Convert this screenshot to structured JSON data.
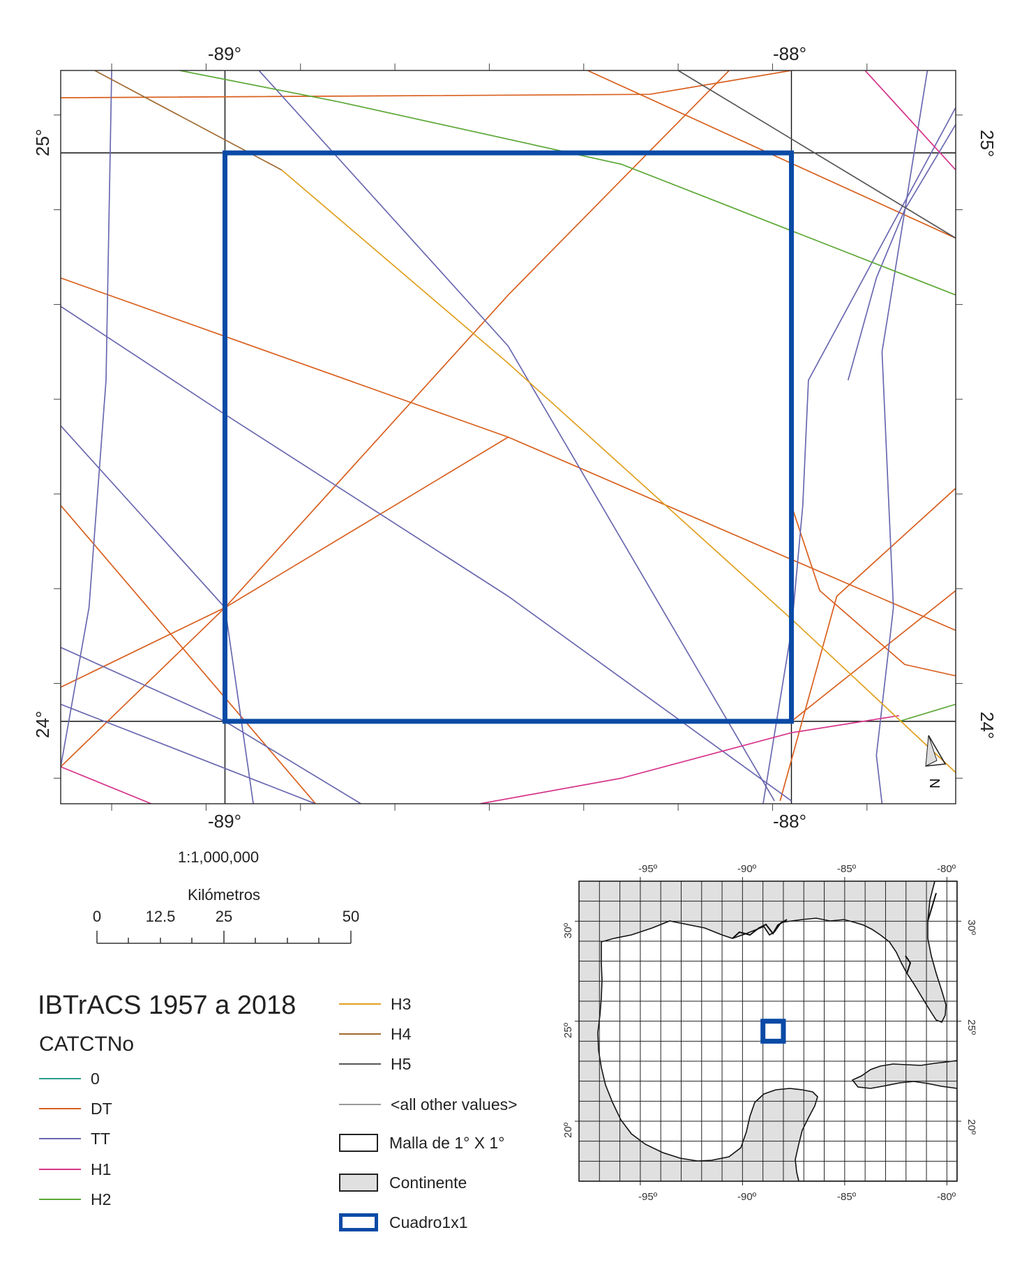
{
  "map": {
    "top_labels": [
      "-89°",
      "-88°"
    ],
    "bottom_labels": [
      "-89°",
      "-88°"
    ],
    "left_labels": [
      "25°",
      "24°"
    ],
    "right_labels": [
      "25°",
      "24°"
    ],
    "extent": {
      "lon_min": -89.29,
      "lon_max": -87.71,
      "lat_min": 23.855,
      "lat_max": 25.145
    },
    "study_square": {
      "lon": [
        -89,
        -88
      ],
      "lat": [
        24,
        25
      ]
    },
    "north_arrow_label": "N",
    "tracks": [
      {
        "category": "DT",
        "color": "#d95f1e",
        "points": [
          [
            -89.29,
            25.097
          ],
          [
            -88.25,
            25.103
          ],
          [
            -88.0,
            25.145
          ]
        ]
      },
      {
        "category": "DT",
        "color": "#d95f1e",
        "points": [
          [
            -88.36,
            25.145
          ],
          [
            -87.71,
            24.85
          ]
        ]
      },
      {
        "category": "DT",
        "color": "#d95f1e",
        "points": [
          [
            -89.29,
            24.78
          ],
          [
            -88.5,
            24.5
          ],
          [
            -87.71,
            24.16
          ]
        ]
      },
      {
        "category": "DT",
        "color": "#d95f1e",
        "points": [
          [
            -89.29,
            24.38
          ],
          [
            -88.84,
            23.855
          ]
        ]
      },
      {
        "category": "DT",
        "color": "#d95f1e",
        "points": [
          [
            -89.29,
            24.06
          ],
          [
            -89.0,
            24.2
          ],
          [
            -88.5,
            24.75
          ],
          [
            -88.11,
            25.145
          ]
        ]
      },
      {
        "category": "DT",
        "color": "#d95f1e",
        "points": [
          [
            -89.29,
            23.92
          ],
          [
            -89.0,
            24.2
          ],
          [
            -88.5,
            24.5
          ]
        ]
      },
      {
        "category": "DT",
        "color": "#d95f1e",
        "points": [
          [
            -88.02,
            23.86
          ],
          [
            -87.92,
            24.22
          ],
          [
            -87.71,
            24.41
          ]
        ]
      },
      {
        "category": "DT",
        "color": "#d95f1e",
        "points": [
          [
            -88.0,
            24.38
          ],
          [
            -87.95,
            24.23
          ],
          [
            -87.8,
            24.1
          ],
          [
            -87.71,
            24.08
          ]
        ]
      },
      {
        "category": "DT",
        "color": "#d95f1e",
        "points": [
          [
            -88.0,
            24.0
          ],
          [
            -87.71,
            24.23
          ]
        ]
      },
      {
        "category": "TT",
        "color": "#6a68b0",
        "points": [
          [
            -89.2,
            25.145
          ],
          [
            -89.21,
            24.6
          ],
          [
            -89.24,
            24.2
          ],
          [
            -89.29,
            23.92
          ]
        ]
      },
      {
        "category": "TT",
        "color": "#6a68b0",
        "points": [
          [
            -89.29,
            24.73
          ],
          [
            -89.0,
            24.54
          ],
          [
            -88.5,
            24.22
          ],
          [
            -88.0,
            23.86
          ]
        ]
      },
      {
        "category": "TT",
        "color": "#6a68b0",
        "points": [
          [
            -88.94,
            25.145
          ],
          [
            -88.5,
            24.66
          ],
          [
            -88.03,
            23.86
          ]
        ]
      },
      {
        "category": "TT",
        "color": "#6a68b0",
        "points": [
          [
            -89.29,
            24.52
          ],
          [
            -89.0,
            24.2
          ],
          [
            -88.95,
            23.855
          ]
        ]
      },
      {
        "category": "TT",
        "color": "#6a68b0",
        "points": [
          [
            -89.29,
            24.13
          ],
          [
            -89.0,
            24.0
          ],
          [
            -88.76,
            23.855
          ]
        ]
      },
      {
        "category": "TT",
        "color": "#6a68b0",
        "points": [
          [
            -89.29,
            24.03
          ],
          [
            -88.84,
            23.855
          ]
        ]
      },
      {
        "category": "TT",
        "color": "#6a68b0",
        "points": [
          [
            -87.71,
            25.08
          ],
          [
            -87.97,
            24.6
          ],
          [
            -87.98,
            24.38
          ],
          [
            -88.0,
            24.16
          ],
          [
            -88.05,
            23.855
          ]
        ]
      },
      {
        "category": "TT",
        "color": "#6a68b0",
        "points": [
          [
            -87.76,
            25.145
          ],
          [
            -87.84,
            24.65
          ],
          [
            -87.82,
            24.2
          ],
          [
            -87.85,
            23.94
          ],
          [
            -87.84,
            23.855
          ]
        ]
      },
      {
        "category": "TT",
        "color": "#6a68b0",
        "points": [
          [
            -87.71,
            25.05
          ],
          [
            -87.8,
            24.9
          ],
          [
            -87.85,
            24.78
          ],
          [
            -87.9,
            24.6
          ]
        ]
      },
      {
        "category": "H1",
        "color": "#d6338a",
        "points": [
          [
            -89.29,
            23.92
          ],
          [
            -89.13,
            23.855
          ]
        ]
      },
      {
        "category": "H1",
        "color": "#d6338a",
        "points": [
          [
            -88.55,
            23.855
          ],
          [
            -88.3,
            23.9
          ],
          [
            -88.0,
            23.98
          ],
          [
            -87.81,
            24.01
          ]
        ]
      },
      {
        "category": "H1",
        "color": "#d6338a",
        "points": [
          [
            -87.87,
            25.145
          ],
          [
            -87.71,
            24.97
          ]
        ]
      },
      {
        "category": "H2",
        "color": "#5ca836",
        "points": [
          [
            -89.08,
            25.145
          ],
          [
            -88.8,
            25.09
          ],
          [
            -88.3,
            24.98
          ],
          [
            -87.71,
            24.75
          ]
        ]
      },
      {
        "category": "H2",
        "color": "#5ca836",
        "points": [
          [
            -87.81,
            24.0
          ],
          [
            -87.71,
            24.03
          ]
        ]
      },
      {
        "category": "H3",
        "color": "#e0a020",
        "points": [
          [
            -88.9,
            24.97
          ],
          [
            -88.5,
            24.63
          ],
          [
            -88.0,
            24.18
          ],
          [
            -87.71,
            23.91
          ]
        ]
      },
      {
        "category": "H4",
        "color": "#a06a30",
        "points": [
          [
            -89.23,
            25.145
          ],
          [
            -88.9,
            24.97
          ]
        ]
      },
      {
        "category": "H5",
        "color": "#555555",
        "points": [
          [
            -88.2,
            25.145
          ],
          [
            -87.71,
            24.85
          ]
        ]
      }
    ]
  },
  "scale": {
    "ratio": "1:1,000,000",
    "unit": "Kilómetros",
    "ticks": [
      "0",
      "12.5",
      "25",
      "50"
    ]
  },
  "legend": {
    "title": "IBTrACS 1957 a 2018",
    "field": "CATCTNo",
    "items": [
      {
        "label": "0",
        "color": "#2a9d8f"
      },
      {
        "label": "DT",
        "color": "#d95f1e"
      },
      {
        "label": "TT",
        "color": "#6a68b0"
      },
      {
        "label": "H1",
        "color": "#d6338a"
      },
      {
        "label": "H2",
        "color": "#5ca836"
      },
      {
        "label": "H3",
        "color": "#e0a020"
      },
      {
        "label": "H4",
        "color": "#a06a30"
      },
      {
        "label": "H5",
        "color": "#555555"
      },
      {
        "label": "<all other values>",
        "color": "#999999"
      }
    ],
    "polygons": [
      {
        "label": "Malla de 1° X 1°",
        "fill": "#ffffff",
        "stroke": "#222222"
      },
      {
        "label": "Continente",
        "fill": "#e0e0e0",
        "stroke": "#222222"
      },
      {
        "label": "Cuadro1x1",
        "fill": "#ffffff",
        "stroke": "#0a4aa6"
      }
    ]
  },
  "inset": {
    "top_labels": [
      "-95º",
      "-90º",
      "-85º",
      "-80º"
    ],
    "bottom_labels": [
      "-95º",
      "-90º",
      "-85º",
      "-80º"
    ],
    "left_labels": [
      "30º",
      "25º",
      "20º"
    ],
    "right_labels": [
      "30º",
      "25º",
      "20º"
    ],
    "lon_range": [
      -98,
      -79.5
    ],
    "lat_range": [
      17,
      32
    ],
    "study_square": {
      "lon": [
        -89,
        -88
      ],
      "lat": [
        24,
        25
      ]
    },
    "land_color": "#e0e0e0",
    "square_color": "#0a4aa6"
  }
}
